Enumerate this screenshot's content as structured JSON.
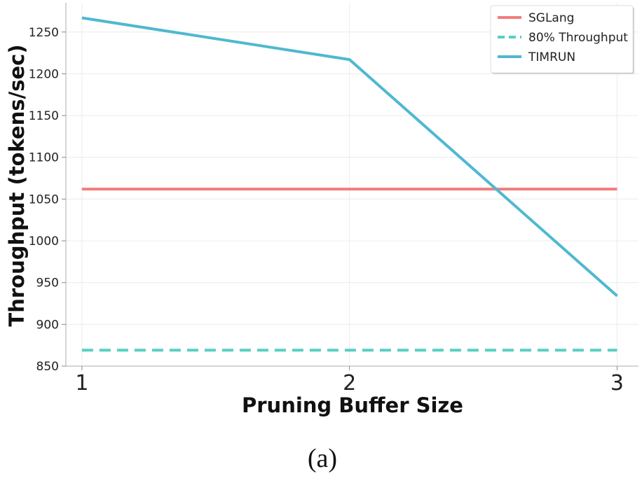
{
  "chart_data": {
    "type": "line",
    "title": "",
    "xlabel": "Pruning Buffer Size",
    "ylabel": "Throughput (tokens/sec)",
    "x": [
      1,
      2,
      3
    ],
    "x_tick_labels": [
      "1",
      "2",
      "3"
    ],
    "xlim": [
      0.94,
      3.08
    ],
    "ylim": [
      850,
      1285
    ],
    "y_ticks": [
      850,
      900,
      950,
      1000,
      1050,
      1100,
      1150,
      1200,
      1250
    ],
    "grid": true,
    "legend_position": "top-right",
    "series": [
      {
        "name": "SGLang",
        "values": [
          1062,
          1062,
          1062
        ],
        "color": "#f47c7c",
        "style": "solid"
      },
      {
        "name": "80% Throughput",
        "values": [
          869,
          869,
          869
        ],
        "color": "#56cfc4",
        "style": "dashed"
      },
      {
        "name": "TIMRUN",
        "values": [
          1267,
          1217,
          934
        ],
        "color": "#4fb8d1",
        "style": "solid"
      }
    ]
  },
  "caption": "(a)"
}
